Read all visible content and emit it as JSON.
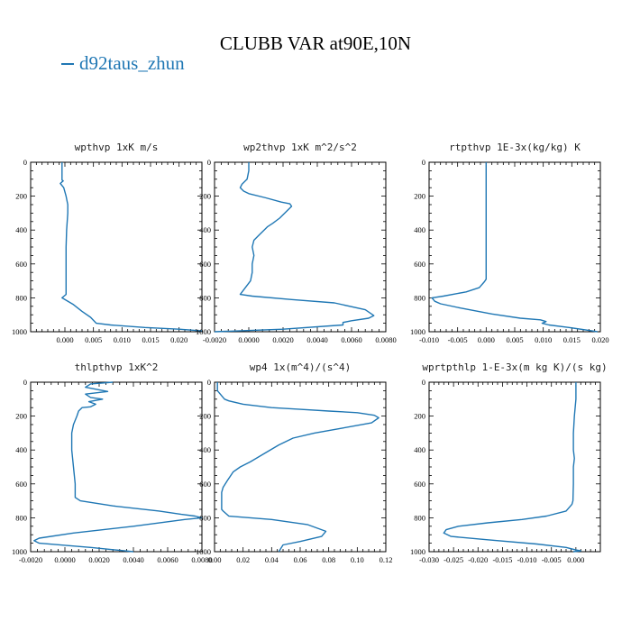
{
  "figure": {
    "title": "CLUBB VAR at90E,10N",
    "legend": [
      {
        "label": "d92taus_zhun",
        "color": "#1f77b4"
      }
    ]
  },
  "chart_data": [
    {
      "type": "line",
      "title": "wpthvp  1xK m/s",
      "xlim": [
        -0.006,
        0.024
      ],
      "xticks": [
        0.0,
        0.005,
        0.01,
        0.015,
        0.02
      ],
      "xtick_labels": [
        "0.000",
        "0.005",
        "0.010",
        "0.015",
        "0.020"
      ],
      "ylim": [
        1000,
        0
      ],
      "yticks": [
        0,
        200,
        400,
        600,
        800,
        1000
      ],
      "series": [
        {
          "x": [
            -0.0005,
            -0.0005,
            -0.0005,
            -0.0005,
            -0.0003,
            -0.0008,
            -0.0002,
            0.0002,
            0.0005,
            0.0005,
            0.0003,
            0.0002,
            0.0002,
            0.0002,
            -0.0005,
            0.0015,
            0.003,
            0.0045,
            0.0055,
            0.008,
            0.014,
            0.02,
            0.024
          ],
          "y": [
            0,
            50,
            100,
            105,
            110,
            125,
            150,
            200,
            250,
            300,
            400,
            500,
            600,
            780,
            800,
            840,
            880,
            915,
            950,
            960,
            975,
            985,
            995
          ]
        }
      ]
    },
    {
      "type": "line",
      "title": "wp2thvp  1xK m^2/s^2",
      "xlim": [
        -0.002,
        0.008
      ],
      "xticks": [
        -0.002,
        0.0,
        0.002,
        0.004,
        0.006,
        0.008
      ],
      "xtick_labels": [
        "-0.0020",
        "0.0000",
        "0.0020",
        "0.0040",
        "0.0060",
        "0.0080"
      ],
      "ylim": [
        1000,
        0
      ],
      "yticks": [
        0,
        200,
        400,
        600,
        800,
        1000
      ],
      "series": [
        {
          "x": [
            0.0,
            0.0,
            -0.0001,
            -0.0004,
            -0.0005,
            -0.0003,
            0.0,
            0.001,
            0.0019,
            0.0024,
            0.0025,
            0.0022,
            0.0018,
            0.0014,
            0.0011,
            0.0006,
            0.0003,
            0.0002,
            0.0003,
            0.0002,
            0.0002,
            0.0001,
            -0.0005,
            0.0002,
            0.0025,
            0.005,
            0.0068,
            0.0073,
            0.007,
            0.006,
            0.0055,
            0.0055,
            0.002,
            -0.002
          ],
          "y": [
            0,
            50,
            100,
            130,
            150,
            170,
            185,
            210,
            235,
            245,
            260,
            290,
            330,
            360,
            380,
            430,
            460,
            500,
            550,
            600,
            650,
            700,
            780,
            790,
            810,
            830,
            870,
            905,
            920,
            935,
            945,
            960,
            985,
            1000
          ]
        }
      ]
    },
    {
      "type": "line",
      "title": "rtpthvp  1E-3x(kg/kg) K",
      "xlim": [
        -0.01,
        0.02
      ],
      "xticks": [
        -0.01,
        -0.005,
        0.0,
        0.005,
        0.01,
        0.015,
        0.02
      ],
      "xtick_labels": [
        "-0.010",
        "-0.005",
        "0.000",
        "0.005",
        "0.010",
        "0.015",
        "0.020"
      ],
      "ylim": [
        1000,
        0
      ],
      "yticks": [
        0,
        200,
        400,
        600,
        800,
        1000
      ],
      "series": [
        {
          "x": [
            0.0,
            0.0,
            0.0,
            0.0,
            0.0,
            0.0,
            0.0,
            -0.0003,
            -0.0012,
            -0.0035,
            -0.0075,
            -0.0095,
            -0.009,
            -0.008,
            -0.0045,
            0.001,
            0.006,
            0.0095,
            0.0105,
            0.0098,
            0.011,
            0.0145,
            0.0175,
            0.0195
          ],
          "y": [
            0,
            100,
            200,
            400,
            500,
            600,
            690,
            705,
            740,
            765,
            790,
            800,
            820,
            835,
            860,
            895,
            920,
            930,
            940,
            950,
            960,
            975,
            990,
            1000
          ]
        }
      ]
    },
    {
      "type": "line",
      "title": "thlpthvp  1xK^2",
      "xlim": [
        -0.002,
        0.008
      ],
      "xticks": [
        -0.002,
        0.0,
        0.002,
        0.004,
        0.006,
        0.008
      ],
      "xtick_labels": [
        "-0.0020",
        "0.0000",
        "0.0020",
        "0.0040",
        "0.0060",
        "0.0080"
      ],
      "ylim": [
        1000,
        0
      ],
      "yticks": [
        0,
        200,
        400,
        600,
        800,
        1000
      ],
      "series": [
        {
          "x": [
            0.0028,
            0.0015,
            0.0012,
            0.0025,
            0.0012,
            0.0015,
            0.0022,
            0.0014,
            0.0018,
            0.0015,
            0.001,
            0.0008,
            0.0007,
            0.0005,
            0.0004,
            0.0004,
            0.0004,
            0.0005,
            0.0006,
            0.0006,
            0.0009,
            0.0028,
            0.0055,
            0.0068,
            0.0076,
            0.008,
            0.007,
            0.004,
            0.0005,
            -0.0015,
            -0.0018,
            -0.0015,
            0.0015,
            0.004
          ],
          "y": [
            0,
            10,
            30,
            55,
            70,
            90,
            100,
            115,
            130,
            145,
            150,
            170,
            200,
            250,
            300,
            350,
            400,
            500,
            600,
            680,
            700,
            730,
            760,
            780,
            790,
            800,
            810,
            850,
            890,
            920,
            935,
            950,
            975,
            1000
          ]
        }
      ]
    },
    {
      "type": "line",
      "title": "wp4  1x(m^4)/(s^4)",
      "xlim": [
        0.0,
        0.12
      ],
      "xticks": [
        0.0,
        0.02,
        0.04,
        0.06,
        0.08,
        0.1,
        0.12
      ],
      "xtick_labels": [
        "0.00",
        "0.02",
        "0.04",
        "0.06",
        "0.08",
        "0.10",
        "0.12"
      ],
      "ylim": [
        1000,
        0
      ],
      "yticks": [
        0,
        200,
        400,
        600,
        800,
        1000
      ],
      "series": [
        {
          "x": [
            0.002,
            0.002,
            0.007,
            0.01,
            0.02,
            0.04,
            0.06,
            0.08,
            0.1,
            0.112,
            0.115,
            0.11,
            0.09,
            0.07,
            0.055,
            0.045,
            0.035,
            0.025,
            0.018,
            0.013,
            0.009,
            0.006,
            0.005,
            0.005,
            0.005,
            0.006,
            0.01,
            0.04,
            0.065,
            0.078,
            0.075,
            0.06,
            0.048,
            0.045
          ],
          "y": [
            0,
            50,
            100,
            110,
            130,
            150,
            160,
            170,
            180,
            195,
            210,
            240,
            270,
            300,
            330,
            370,
            420,
            470,
            500,
            530,
            580,
            620,
            650,
            700,
            750,
            760,
            790,
            810,
            840,
            880,
            910,
            940,
            960,
            1000
          ]
        }
      ]
    },
    {
      "type": "line",
      "title": "wprtpthlp  1-E-3x(m kg K)/(s kg)",
      "xlim": [
        -0.03,
        0.005
      ],
      "xticks": [
        -0.03,
        -0.025,
        -0.02,
        -0.015,
        -0.01,
        -0.005,
        0.0
      ],
      "xtick_labels": [
        "-0.030",
        "-0.025",
        "-0.020",
        "-0.015",
        "-0.010",
        "-0.005",
        "0.000"
      ],
      "ylim": [
        1000,
        0
      ],
      "yticks": [
        0,
        200,
        400,
        600,
        800,
        1000
      ],
      "series": [
        {
          "x": [
            0.0,
            0.0,
            -0.0003,
            -0.0005,
            -0.0005,
            -0.0003,
            -0.0005,
            -0.0005,
            -0.0006,
            -0.0008,
            -0.002,
            -0.006,
            -0.011,
            -0.018,
            -0.024,
            -0.0265,
            -0.027,
            -0.0255,
            -0.018,
            -0.008,
            -0.002,
            0.0,
            0.001,
            -0.0005
          ],
          "y": [
            0,
            100,
            200,
            300,
            400,
            450,
            500,
            600,
            700,
            720,
            760,
            790,
            810,
            830,
            850,
            870,
            890,
            910,
            930,
            955,
            975,
            990,
            995,
            1000
          ]
        }
      ]
    }
  ]
}
